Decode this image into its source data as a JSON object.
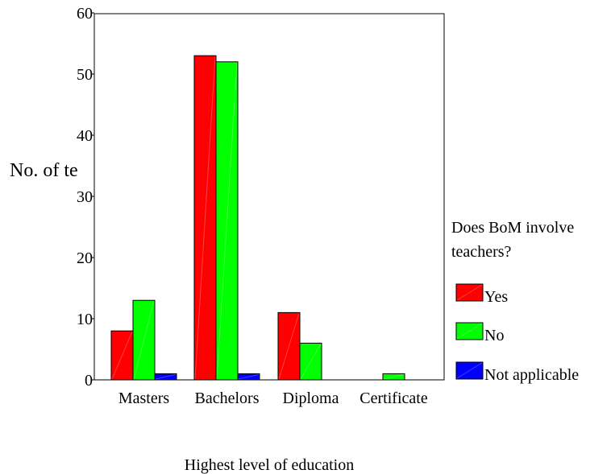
{
  "chart_data": {
    "type": "bar",
    "categories": [
      "Masters",
      "Bachelors",
      "Diploma",
      "Certificate"
    ],
    "series": [
      {
        "name": "Yes",
        "color": "#ff0000",
        "values": [
          8,
          53,
          11,
          0
        ]
      },
      {
        "name": "No",
        "color": "#00ff00",
        "values": [
          13,
          52,
          6,
          1
        ]
      },
      {
        "name": "Not applicable",
        "color": "#0000ff",
        "values": [
          1,
          1,
          0,
          0
        ]
      }
    ],
    "ylabel": "No. of te",
    "xlabel": "Highest level of education",
    "ylim": [
      0,
      60
    ],
    "yticks": [
      0,
      10,
      20,
      30,
      40,
      50,
      60
    ],
    "grid": false,
    "legend_title_line1": "Does BoM involve",
    "legend_title_line2": "teachers?",
    "legend_position": "right"
  }
}
